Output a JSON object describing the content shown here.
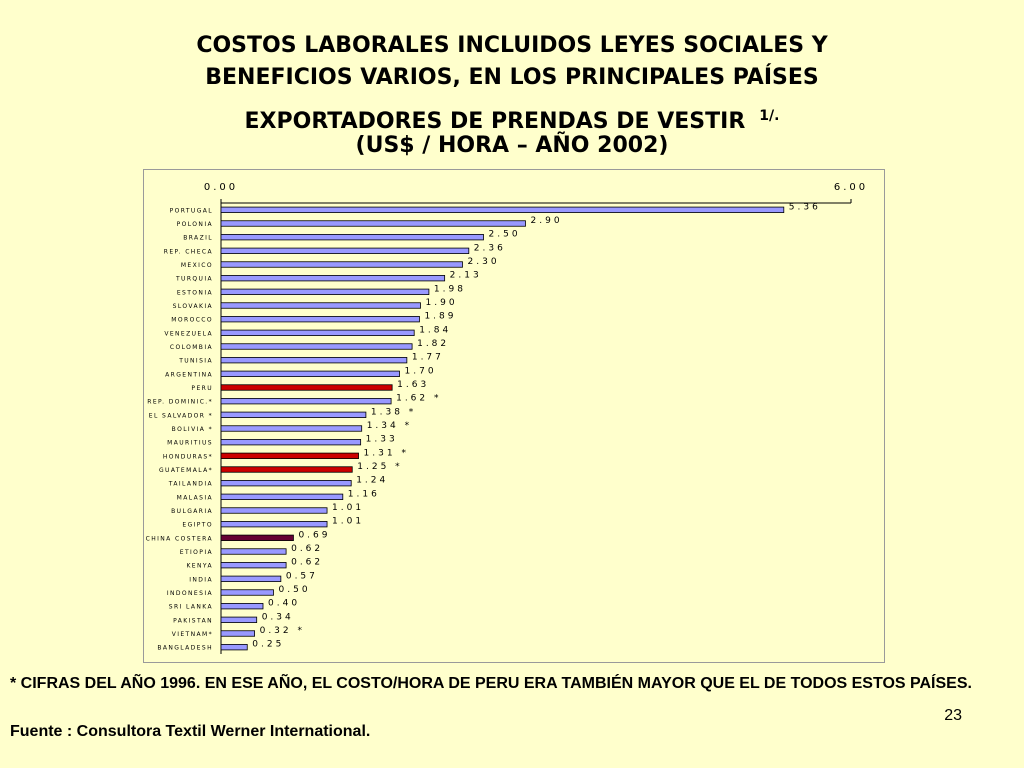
{
  "title": {
    "line1": "COSTOS LABORALES INCLUIDOS LEYES SOCIALES Y",
    "line2": "BENEFICIOS VARIOS, EN LOS PRINCIPALES PAÍSES",
    "line3": "EXPORTADORES DE PRENDAS DE VESTIR",
    "superscript": "1/.",
    "line4": "(US$ / HORA – AÑO 2002)"
  },
  "chart_data": {
    "type": "bar",
    "orientation": "horizontal",
    "xlim": [
      0,
      6
    ],
    "ticks": [
      "0.00",
      "6.00"
    ],
    "grid": false,
    "colors": {
      "default": "#9999ff",
      "highlight": "#cc0000",
      "alt": "#660033"
    },
    "categories": [
      "PORTUGAL",
      "POLONIA",
      "BRAZIL",
      "REP. CHECA",
      "MEXICO",
      "TURQUIA",
      "ESTONIA",
      "SLOVAKIA",
      "MOROCCO",
      "VENEZUELA",
      "COLOMBIA",
      "TUNISIA",
      "ARGENTINA",
      "PERU",
      "REP. DOMINIC.*",
      "EL SALVADOR *",
      "BOLIVIA *",
      "MAURITIUS",
      "HONDURAS*",
      "GUATEMALA*",
      "TAILANDIA",
      "MALASIA",
      "BULGARIA",
      "EGIPTO",
      "CHINA COSTERA",
      "ETIOPIA",
      "KENYA",
      "INDIA",
      "INDONESIA",
      "SRI LANKA",
      "PAKISTAN",
      "VIETNAM*",
      "BANGLADESH"
    ],
    "values": [
      5.36,
      2.9,
      2.5,
      2.36,
      2.3,
      2.13,
      1.98,
      1.9,
      1.89,
      1.84,
      1.82,
      1.77,
      1.7,
      1.63,
      1.62,
      1.38,
      1.34,
      1.33,
      1.31,
      1.25,
      1.24,
      1.16,
      1.01,
      1.01,
      0.69,
      0.62,
      0.62,
      0.57,
      0.5,
      0.4,
      0.34,
      0.32,
      0.25
    ],
    "value_labels": [
      "5.36",
      "2.90",
      "2.50",
      "2.36",
      "2.30",
      "2.13",
      "1.98",
      "1.90",
      "1.89",
      "1.84",
      "1.82",
      "1.77",
      "1.70",
      "1.63",
      "1.62 *",
      "1.38 *",
      "1.34 *",
      "1.33",
      "1.31 *",
      "1.25 *",
      "1.24",
      "1.16",
      "1.01",
      "1.01",
      "0.69",
      "0.62",
      "0.62",
      "0.57",
      "0.50",
      "0.40",
      "0.34",
      "0.32 *",
      "0.25"
    ],
    "bar_colors": [
      "default",
      "default",
      "default",
      "default",
      "default",
      "default",
      "default",
      "default",
      "default",
      "default",
      "default",
      "default",
      "default",
      "highlight",
      "default",
      "default",
      "default",
      "default",
      "highlight",
      "highlight",
      "default",
      "default",
      "default",
      "default",
      "alt",
      "default",
      "default",
      "default",
      "default",
      "default",
      "default",
      "default",
      "default"
    ]
  },
  "footnote": {
    "line1": "* CIFRAS DEL AÑO 1996. EN ESE AÑO, EL COSTO/HORA DE PERU ERA TAMBIÉN MAYOR QUE EL DE TODOS ESTOS PAÍSES.",
    "line2": "Fuente :  Consultora Textil Werner International."
  },
  "page_number": "23"
}
